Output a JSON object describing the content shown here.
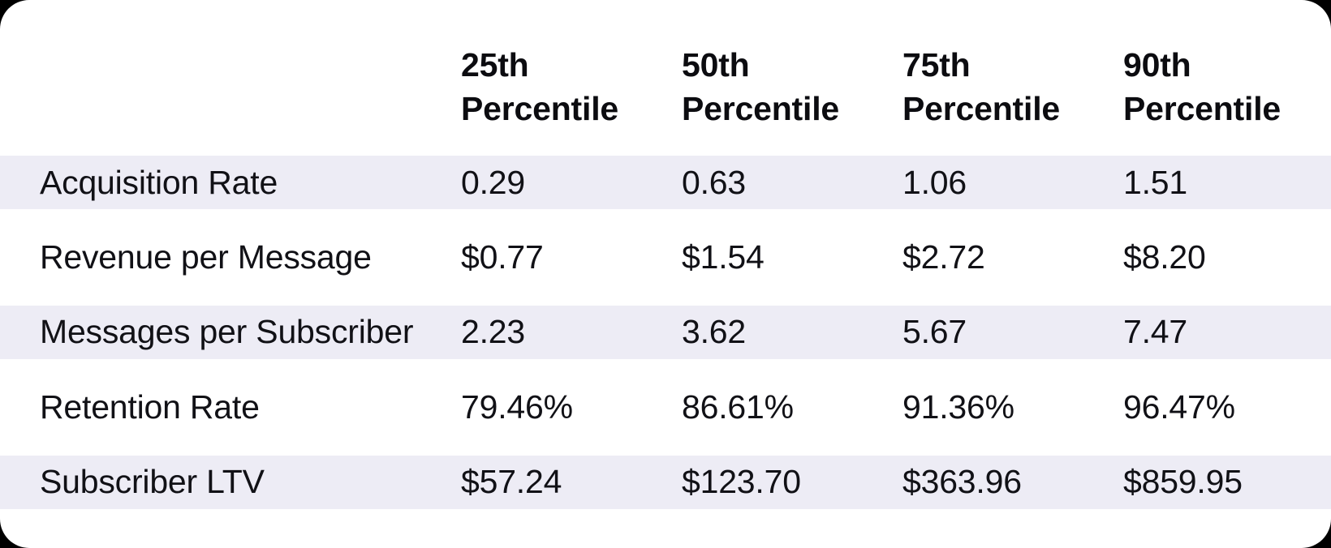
{
  "chart_data": {
    "type": "table",
    "columns": [
      "",
      "25th Percentile",
      "50th Percentile",
      "75th Percentile",
      "90th Percentile"
    ],
    "rows": [
      [
        "Acquisition Rate",
        "0.29",
        "0.63",
        "1.06",
        "1.51"
      ],
      [
        "Revenue per Message",
        "$0.77",
        "$1.54",
        "$2.72",
        "$8.20"
      ],
      [
        "Messages per Subscriber",
        "2.23",
        "3.62",
        "5.67",
        "7.47"
      ],
      [
        "Retention Rate",
        "79.46%",
        "86.61%",
        "91.36%",
        "96.47%"
      ],
      [
        "Subscriber LTV",
        "$57.24",
        "$123.70",
        "$363.96",
        "$859.95"
      ]
    ],
    "layout": {
      "striped_row_indexes": [
        0,
        2,
        4
      ],
      "header_lines_per_column": 2,
      "grid": "off",
      "legend": "none"
    }
  },
  "theme": {
    "surround_color": "#000000",
    "card_color": "#FFFFFF",
    "stripe_color": "#EDECF5",
    "text_color": "#111116",
    "header_text_color": "#0C0C10"
  }
}
